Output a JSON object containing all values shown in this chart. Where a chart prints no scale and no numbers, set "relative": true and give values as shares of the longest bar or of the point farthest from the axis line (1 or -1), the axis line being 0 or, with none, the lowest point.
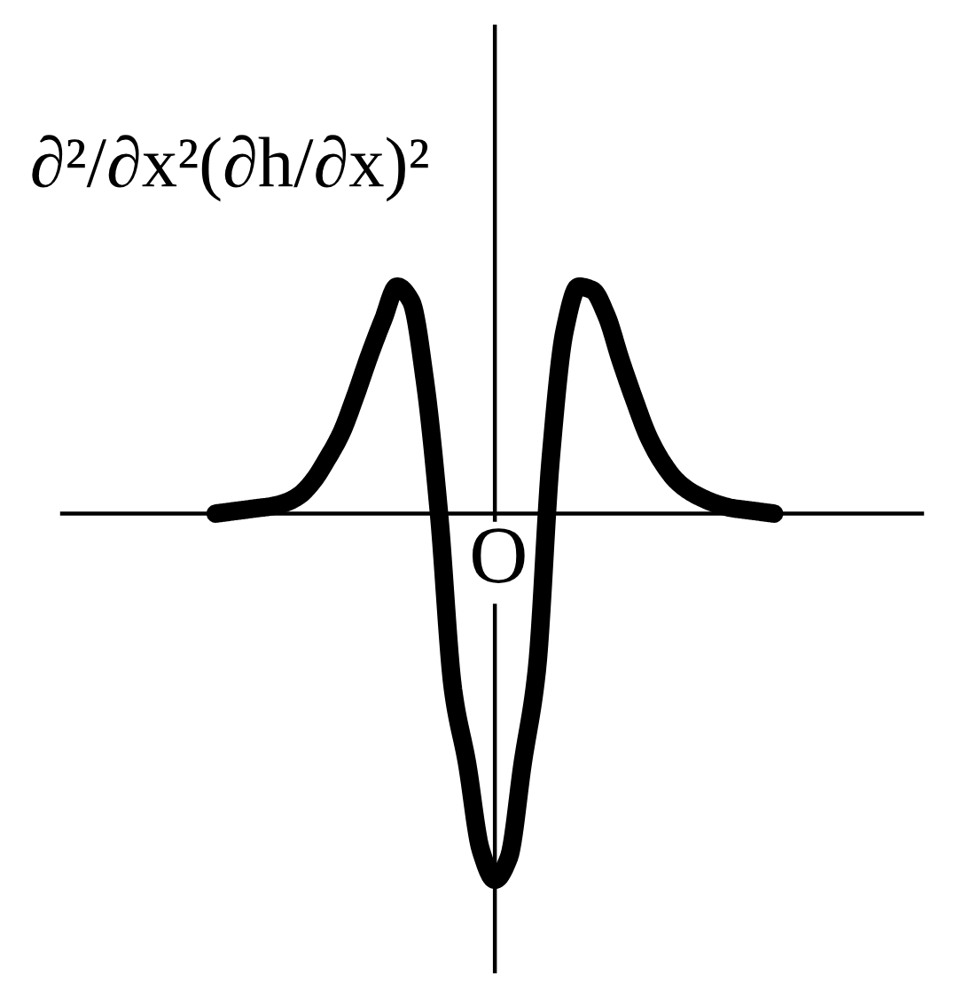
{
  "chart_data": {
    "type": "line",
    "ylabel": "∂²/∂x²(∂h/∂x)²",
    "categories": [
      null,
      null,
      null,
      null,
      null,
      null,
      null,
      null,
      null,
      null,
      null,
      null,
      null,
      null,
      null,
      null,
      null,
      null,
      null,
      null,
      null,
      null,
      null,
      null,
      null,
      null,
      null,
      null,
      null,
      null,
      null,
      null,
      null,
      null,
      null,
      null,
      null,
      null,
      null,
      null,
      null
    ],
    "values": [
      0,
      0.005,
      0.01,
      0.015,
      0.02,
      0.03,
      0.05,
      0.09,
      0.15,
      0.22,
      0.32,
      0.43,
      0.53,
      0.62,
      0.58,
      0.36,
      0,
      -0.48,
      -0.68,
      -0.92,
      -1,
      -0.94,
      -0.68,
      -0.43,
      0.15,
      0.5,
      0.62,
      0.61,
      0.54,
      0.42,
      0.31,
      0.21,
      0.14,
      0.09,
      0.06,
      0.04,
      0.025,
      0.015,
      0.01,
      0.005,
      0
    ],
    "color": "#000000",
    "relative": true,
    "annotations": [
      "O"
    ]
  }
}
